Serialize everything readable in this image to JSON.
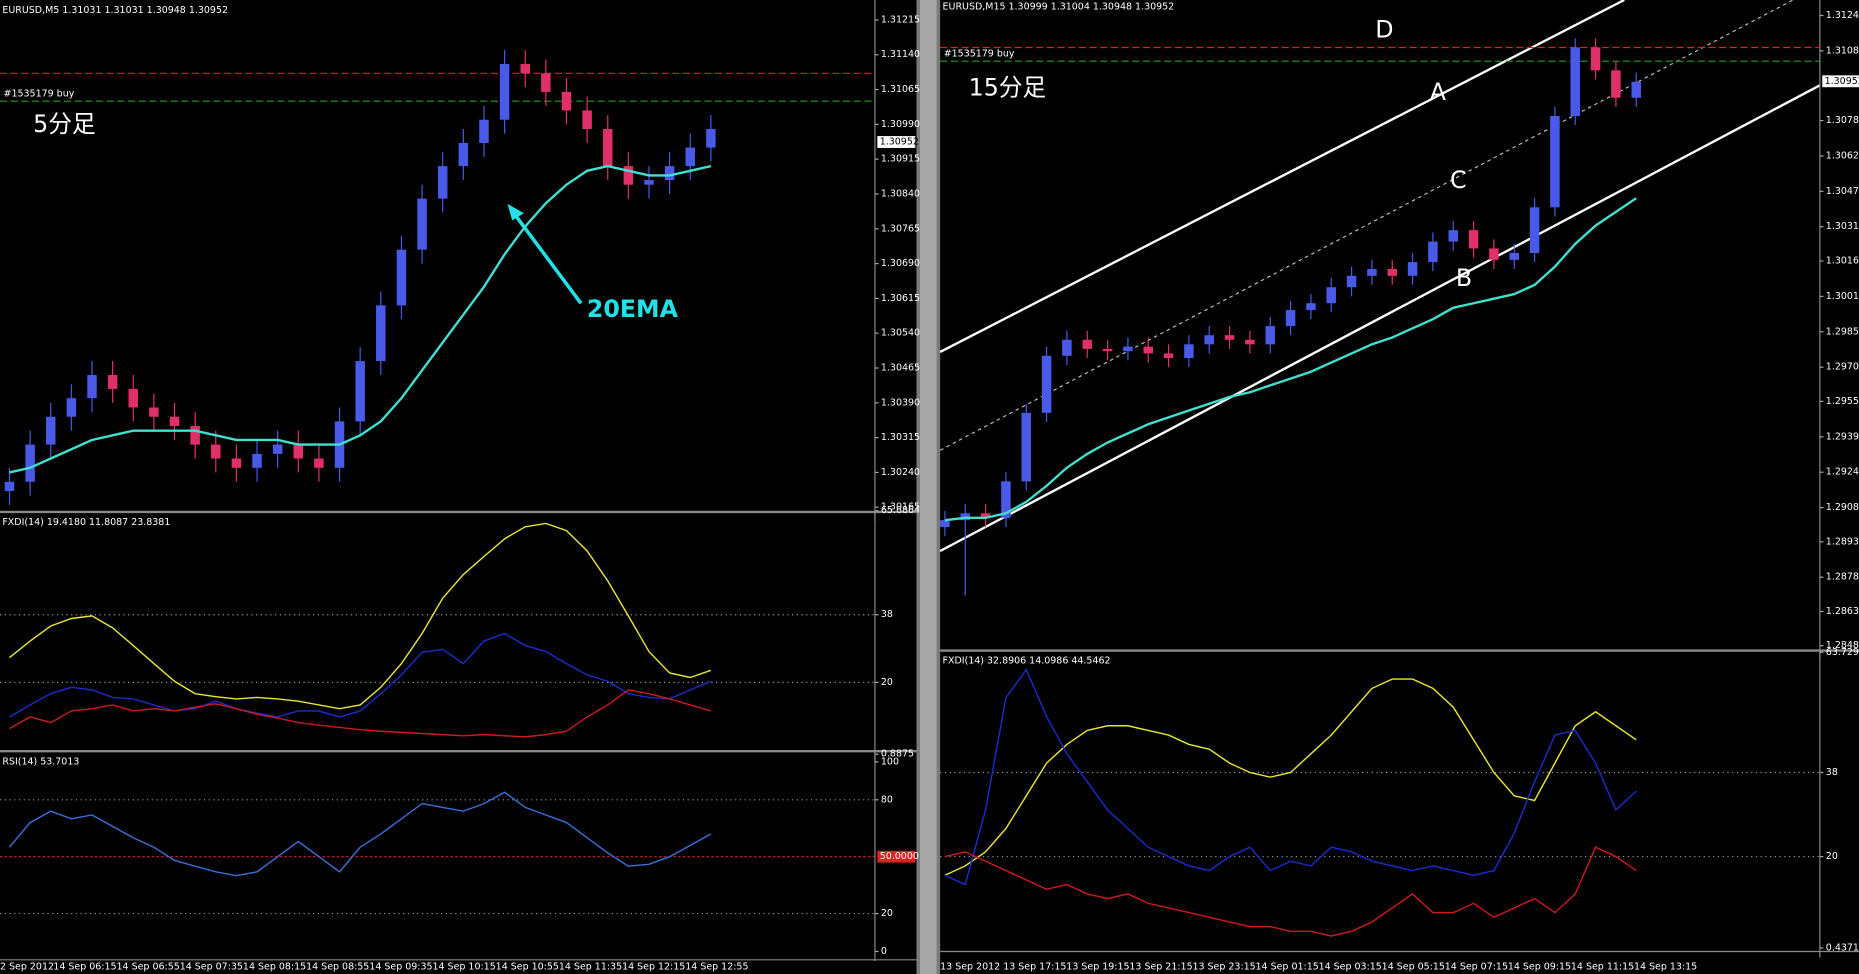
{
  "chart_data": [
    {
      "type": "candlestick",
      "header": "EURUSD,M5  1.31031 1.31031 1.30948 1.30952",
      "annotations": [
        "5分足",
        "20EMA"
      ],
      "order_label": "#1535179 buy",
      "up_color": "#4a5ae8",
      "down_color": "#e0306a",
      "ema_color": "#40e0d0",
      "open": [
        1.302,
        1.3022,
        1.303,
        1.3036,
        1.304,
        1.3045,
        1.3042,
        1.3038,
        1.3036,
        1.3034,
        1.303,
        1.3027,
        1.3025,
        1.3028,
        1.303,
        1.3027,
        1.3025,
        1.3035,
        1.3048,
        1.306,
        1.3072,
        1.3083,
        1.309,
        1.3095,
        1.31,
        1.3112,
        1.311,
        1.3106,
        1.3102,
        1.3098,
        1.309,
        1.3086,
        1.3087,
        1.309,
        1.3094
      ],
      "high": [
        1.3025,
        1.3033,
        1.3039,
        1.3043,
        1.3048,
        1.3048,
        1.3045,
        1.3041,
        1.3039,
        1.3037,
        1.3033,
        1.303,
        1.3031,
        1.3033,
        1.3033,
        1.303,
        1.3038,
        1.3051,
        1.3063,
        1.3075,
        1.3086,
        1.3093,
        1.3098,
        1.3103,
        1.3115,
        1.3115,
        1.3113,
        1.3109,
        1.3105,
        1.3101,
        1.3093,
        1.309,
        1.3093,
        1.3097,
        1.3101
      ],
      "low": [
        1.3017,
        1.3019,
        1.3027,
        1.3033,
        1.3037,
        1.3039,
        1.3035,
        1.3033,
        1.3031,
        1.3027,
        1.3024,
        1.3022,
        1.3022,
        1.3025,
        1.3024,
        1.3022,
        1.3022,
        1.3032,
        1.3045,
        1.3057,
        1.3069,
        1.308,
        1.3087,
        1.3092,
        1.3097,
        1.3107,
        1.3103,
        1.3099,
        1.3095,
        1.3087,
        1.3083,
        1.3083,
        1.3084,
        1.3087,
        1.3091
      ],
      "close": [
        1.3022,
        1.303,
        1.3036,
        1.304,
        1.3045,
        1.3042,
        1.3038,
        1.3036,
        1.3034,
        1.303,
        1.3027,
        1.3025,
        1.3028,
        1.303,
        1.3027,
        1.3025,
        1.3035,
        1.3048,
        1.306,
        1.3072,
        1.3083,
        1.309,
        1.3095,
        1.31,
        1.3112,
        1.311,
        1.3106,
        1.3102,
        1.3098,
        1.309,
        1.3086,
        1.3087,
        1.309,
        1.3094,
        1.3098
      ],
      "ema": [
        1.3024,
        1.3025,
        1.3027,
        1.3029,
        1.3031,
        1.3032,
        1.3033,
        1.3033,
        1.3033,
        1.3033,
        1.3032,
        1.3031,
        1.3031,
        1.3031,
        1.303,
        1.303,
        1.303,
        1.3032,
        1.3035,
        1.304,
        1.3046,
        1.3052,
        1.3058,
        1.3064,
        1.3071,
        1.3077,
        1.3082,
        1.3086,
        1.3089,
        1.309,
        1.3089,
        1.3088,
        1.3088,
        1.3089,
        1.309
      ],
      "hlines": [
        {
          "value": 1.311,
          "color": "#e02020"
        },
        {
          "value": 1.3104,
          "color": "#20a020"
        }
      ],
      "bid": 1.30952,
      "ylim": [
        1.30155,
        1.31258
      ],
      "yticks": [
        1.31215,
        {
          "value": 1.3114,
          "label": "1.31140"
        },
        1.31065,
        {
          "value": 1.3099,
          "label": "1.30990"
        },
        1.30915,
        {
          "value": 1.3084,
          "label": "1.30840"
        },
        1.30765,
        {
          "value": 1.3069,
          "label": "1.30690"
        },
        1.30615,
        {
          "value": 1.3054,
          "label": "1.30540"
        },
        1.30465,
        {
          "value": 1.3039,
          "label": "1.30390"
        },
        1.30315,
        {
          "value": 1.3024,
          "label": "1.30240"
        },
        1.30165
      ]
    },
    {
      "type": "line",
      "header": "FXDI(14) 19.4180 11.8087 23.8381",
      "series": [
        {
          "color": "#e6e62e",
          "values": [
            26.6,
            31,
            35,
            37,
            37.7,
            34.5,
            29.8,
            25,
            20.3,
            17,
            16.2,
            15.6,
            16,
            15.6,
            15,
            14,
            13,
            14,
            18.7,
            25,
            33,
            42.4,
            48.7,
            53.5,
            58.2,
            61.4,
            62.3,
            60.4,
            55,
            47,
            37.7,
            28.2,
            22.5,
            21.3,
            23.2
          ]
        },
        {
          "color": "#1a2ccc",
          "values": [
            10.8,
            14,
            17,
            18.7,
            18,
            16,
            15.6,
            14,
            12.4,
            13,
            15,
            13,
            11.8,
            10.8,
            12.4,
            12.4,
            10.8,
            12.4,
            17,
            22,
            28,
            28.8,
            25,
            31,
            33,
            29.8,
            28.2,
            25,
            22,
            20.3,
            17,
            16,
            15.6,
            18,
            20.3
          ]
        },
        {
          "color": "#cc1a1a",
          "values": [
            7.7,
            10.8,
            9.3,
            12.4,
            13,
            14,
            12.4,
            13,
            12.4,
            13.4,
            14.3,
            13,
            11.5,
            10.5,
            9.3,
            8.6,
            8,
            7.4,
            7,
            6.7,
            6.4,
            6.1,
            5.8,
            6.1,
            5.8,
            5.5,
            6.1,
            7,
            10.8,
            14,
            18,
            17,
            15.6,
            14,
            12.4
          ]
        }
      ],
      "ylim": [
        0.8875,
        65.6864
      ],
      "yticks": [
        65.6864,
        38,
        20,
        0.8875
      ]
    },
    {
      "type": "line",
      "header": "RSI(14) 53.7013",
      "series": [
        {
          "color": "#3a6fd8",
          "values": [
            55,
            68,
            74,
            70,
            72,
            66,
            60,
            55,
            48,
            45,
            42,
            40,
            42,
            50,
            58,
            50,
            42,
            55,
            62,
            70,
            78,
            76,
            74,
            78,
            84,
            76,
            72,
            68,
            60,
            52,
            45,
            46,
            50,
            56,
            62
          ]
        }
      ],
      "midline": {
        "value": 50,
        "label": "50.0000",
        "color": "#e02020"
      },
      "ylim": [
        0,
        100
      ],
      "yticks": [
        100,
        80,
        20,
        0
      ],
      "time_labels": [
        "2 Sep 2012",
        "14 Sep 06:15",
        "14 Sep 06:55",
        "14 Sep 07:35",
        "14 Sep 08:15",
        "14 Sep 08:55",
        "14 Sep 09:35",
        "14 Sep 10:15",
        "14 Sep 10:55",
        "14 Sep 11:35",
        "14 Sep 12:15",
        "14 Sep 12:55"
      ]
    },
    {
      "type": "candlestick",
      "header": "EURUSD,M15  1.30999 1.31004 1.30948 1.30952",
      "annotations": [
        "15分足",
        "D",
        "A",
        "C",
        "B"
      ],
      "order_label": "#1535179 buy",
      "up_color": "#4a5ae8",
      "down_color": "#e0306a",
      "ema_color": "#40e0d0",
      "open": [
        1.29,
        1.2903,
        1.2906,
        1.2904,
        1.292,
        1.295,
        1.2975,
        1.2982,
        1.2978,
        1.2977,
        1.2979,
        1.2976,
        1.2974,
        1.298,
        1.2984,
        1.2982,
        1.298,
        1.2988,
        1.2995,
        1.2998,
        1.3005,
        1.301,
        1.3013,
        1.301,
        1.3016,
        1.3025,
        1.303,
        1.3022,
        1.3017,
        1.302,
        1.304,
        1.308,
        1.311,
        1.31,
        1.3088
      ],
      "high": [
        1.2907,
        1.291,
        1.291,
        1.2924,
        1.2954,
        1.2979,
        1.2986,
        1.2986,
        1.2982,
        1.2983,
        1.2983,
        1.298,
        1.2984,
        1.2988,
        1.2988,
        1.2986,
        1.2992,
        1.2999,
        1.3002,
        1.3009,
        1.3014,
        1.3017,
        1.3017,
        1.302,
        1.3029,
        1.3034,
        1.3034,
        1.3026,
        1.3024,
        1.3044,
        1.3084,
        1.3114,
        1.3114,
        1.3104,
        1.3099
      ],
      "low": [
        1.2896,
        1.287,
        1.29,
        1.29,
        1.2916,
        1.2946,
        1.2971,
        1.2974,
        1.2973,
        1.2973,
        1.2972,
        1.297,
        1.297,
        1.2976,
        1.2978,
        1.2976,
        1.2976,
        1.2984,
        1.2991,
        1.2994,
        1.3001,
        1.3006,
        1.3006,
        1.3006,
        1.3012,
        1.3021,
        1.3018,
        1.3013,
        1.3013,
        1.3016,
        1.3036,
        1.3076,
        1.3096,
        1.3084,
        1.3084
      ],
      "close": [
        1.2903,
        1.2906,
        1.2904,
        1.292,
        1.295,
        1.2975,
        1.2982,
        1.2978,
        1.2977,
        1.2979,
        1.2976,
        1.2974,
        1.298,
        1.2984,
        1.2982,
        1.298,
        1.2988,
        1.2995,
        1.2998,
        1.3005,
        1.301,
        1.3013,
        1.301,
        1.3016,
        1.3025,
        1.303,
        1.3022,
        1.3017,
        1.302,
        1.304,
        1.308,
        1.311,
        1.31,
        1.3088,
        1.3095
      ],
      "ema": [
        1.2903,
        1.2904,
        1.2904,
        1.2906,
        1.2911,
        1.2918,
        1.2926,
        1.2932,
        1.2937,
        1.2941,
        1.2945,
        1.2948,
        1.2951,
        1.2954,
        1.2957,
        1.2959,
        1.2962,
        1.2965,
        1.2968,
        1.2972,
        1.2976,
        1.298,
        1.2983,
        1.2987,
        1.2991,
        1.2996,
        1.2998,
        1.3,
        1.3002,
        1.3006,
        1.3014,
        1.3024,
        1.3032,
        1.3038,
        1.3044
      ],
      "hlines": [
        {
          "value": 1.311,
          "color": "#e02020"
        },
        {
          "value": 1.3104,
          "color": "#20a020"
        }
      ],
      "bid": 1.30952,
      "ylim": [
        1.28459,
        1.31308
      ],
      "yticks": [
        {
          "value": 1.3124,
          "label": "1.31240"
        },
        1.31085,
        {
          "value": 1.3078,
          "label": "1.30780"
        },
        1.30625,
        {
          "value": 1.3047,
          "label": "1.30470"
        },
        1.30315,
        1.30165,
        {
          "value": 1.3001,
          "label": "1.30010"
        },
        1.29855,
        {
          "value": 1.297,
          "label": "1.29700"
        },
        {
          "value": 1.2955,
          "label": "1.29550"
        },
        1.29395,
        {
          "value": 1.2924,
          "label": "1.29240"
        },
        1.29085,
        1.28935,
        {
          "value": 1.2878,
          "label": "1.28780"
        },
        {
          "value": 1.2863,
          "label": "1.28630"
        },
        {
          "value": 1.2848,
          "label": "1.28480"
        }
      ]
    },
    {
      "type": "line",
      "header": "FXDI(14) 32.8906 14.0986 44.5462",
      "series": [
        {
          "color": "#e6e62e",
          "values": [
            16,
            18,
            21,
            26,
            33,
            40,
            44,
            47,
            48,
            48,
            47,
            46,
            44,
            43,
            40,
            38,
            37,
            38,
            42,
            46,
            51,
            56,
            58,
            58,
            56,
            52,
            45,
            38,
            33,
            32,
            40,
            48,
            51,
            48,
            45
          ]
        },
        {
          "color": "#1a2ccc",
          "values": [
            16,
            14,
            30,
            54,
            60,
            50,
            42,
            36,
            30,
            26,
            22,
            20,
            18,
            17,
            20,
            22,
            17,
            19,
            18,
            22,
            21,
            19,
            18,
            17,
            18,
            17,
            16,
            17,
            25,
            36,
            46,
            47,
            40,
            30,
            34
          ]
        },
        {
          "color": "#cc1a1a",
          "values": [
            20,
            21,
            19,
            17,
            15,
            13,
            14,
            12,
            11,
            12,
            10,
            9,
            8,
            7,
            6,
            5,
            5,
            4,
            4,
            3,
            4,
            6,
            9,
            12,
            8,
            8,
            10,
            7,
            9,
            11,
            8,
            12,
            22,
            20,
            17
          ]
        }
      ],
      "ylim": [
        0.4371,
        63.7297
      ],
      "yticks": [
        63.7297,
        38,
        20,
        0.4371
      ],
      "time_labels": [
        "13 Sep 2012",
        "13 Sep 17:15",
        "13 Sep 19:15",
        "13 Sep 21:15",
        "13 Sep 23:15",
        "14 Sep 01:15",
        "14 Sep 03:15",
        "14 Sep 05:15",
        "14 Sep 07:15",
        "14 Sep 09:15",
        "14 Sep 11:15",
        "14 Sep 13:15"
      ]
    }
  ]
}
